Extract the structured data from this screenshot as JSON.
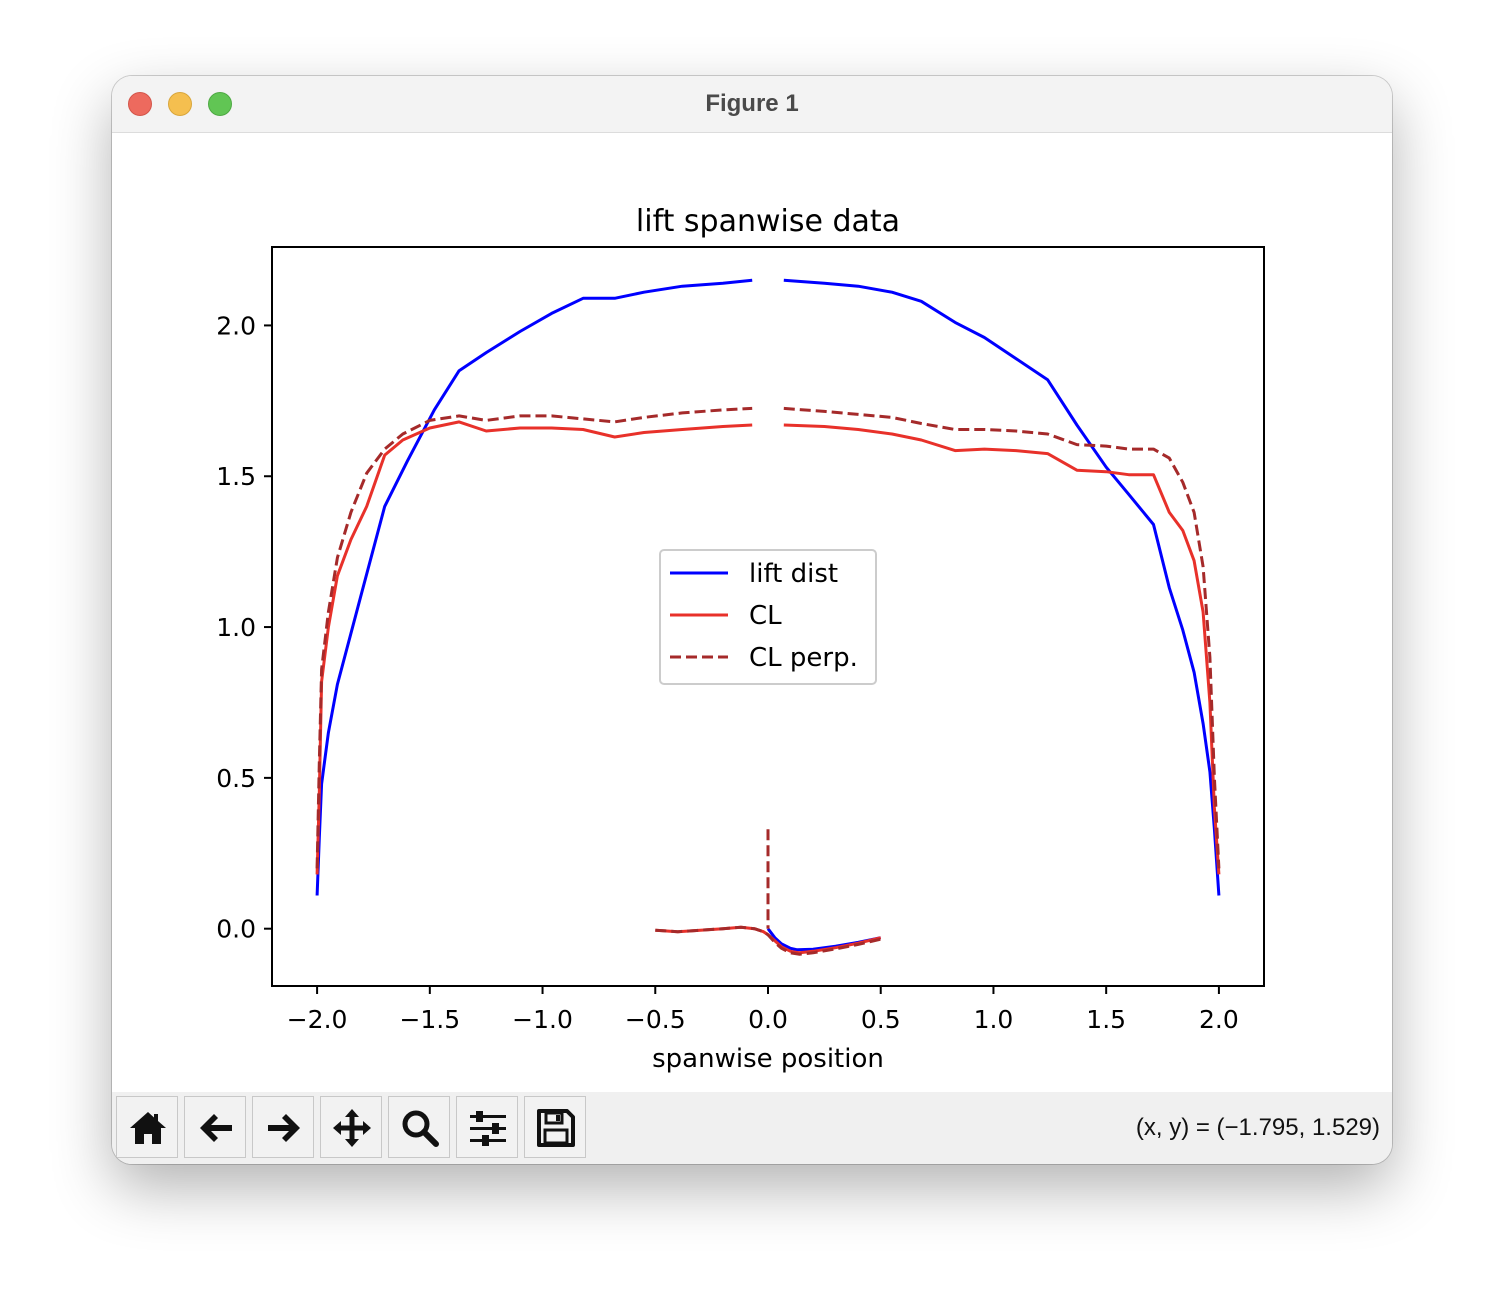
{
  "window": {
    "title": "Figure 1"
  },
  "toolbar": {
    "buttons": [
      {
        "name": "home-button",
        "icon": "home-icon"
      },
      {
        "name": "back-button",
        "icon": "arrow-left-icon"
      },
      {
        "name": "forward-button",
        "icon": "arrow-right-icon"
      },
      {
        "name": "pan-button",
        "icon": "move-icon"
      },
      {
        "name": "zoom-button",
        "icon": "search-icon"
      },
      {
        "name": "configure-subplots-button",
        "icon": "sliders-icon"
      },
      {
        "name": "save-button",
        "icon": "save-icon"
      }
    ],
    "coords": "(x, y) = (−1.795, 1.529)"
  },
  "chart_data": {
    "type": "line",
    "title": "lift spanwise data",
    "xlabel": "spanwise position",
    "ylabel": "",
    "xlim": [
      -2.2,
      2.2
    ],
    "ylim": [
      -0.19,
      2.26
    ],
    "xticks": [
      -2.0,
      -1.5,
      -1.0,
      -0.5,
      0.0,
      0.5,
      1.0,
      1.5,
      2.0
    ],
    "xtick_labels": [
      "−2.0",
      "−1.5",
      "−1.0",
      "−0.5",
      "0.0",
      "0.5",
      "1.0",
      "1.5",
      "2.0"
    ],
    "yticks": [
      0.0,
      0.5,
      1.0,
      1.5,
      2.0
    ],
    "ytick_labels": [
      "0.0",
      "0.5",
      "1.0",
      "1.5",
      "2.0"
    ],
    "grid": false,
    "legend": {
      "placement": "center"
    },
    "series": [
      {
        "name": "lift dist",
        "color": "#0000ff",
        "dash": "solid",
        "segments": [
          [
            [
              -2.0,
              0.11
            ],
            [
              -1.99,
              0.3
            ],
            [
              -1.98,
              0.48
            ],
            [
              -1.95,
              0.65
            ],
            [
              -1.91,
              0.81
            ],
            [
              -1.8,
              1.12
            ],
            [
              -1.7,
              1.4
            ],
            [
              -1.6,
              1.55
            ],
            [
              -1.48,
              1.72
            ],
            [
              -1.37,
              1.85
            ],
            [
              -1.25,
              1.91
            ],
            [
              -1.1,
              1.98
            ],
            [
              -0.96,
              2.04
            ],
            [
              -0.82,
              2.09
            ],
            [
              -0.68,
              2.09
            ],
            [
              -0.55,
              2.11
            ],
            [
              -0.38,
              2.13
            ],
            [
              -0.2,
              2.14
            ],
            [
              -0.07,
              2.15
            ]
          ],
          [
            [
              0.07,
              2.15
            ],
            [
              0.25,
              2.14
            ],
            [
              0.4,
              2.13
            ],
            [
              0.55,
              2.11
            ],
            [
              0.68,
              2.08
            ],
            [
              0.83,
              2.01
            ],
            [
              0.96,
              1.96
            ],
            [
              1.1,
              1.89
            ],
            [
              1.24,
              1.82
            ],
            [
              1.37,
              1.67
            ],
            [
              1.5,
              1.53
            ],
            [
              1.6,
              1.44
            ],
            [
              1.71,
              1.34
            ],
            [
              1.78,
              1.13
            ],
            [
              1.84,
              0.99
            ],
            [
              1.89,
              0.85
            ],
            [
              1.93,
              0.68
            ],
            [
              1.96,
              0.52
            ],
            [
              1.98,
              0.33
            ],
            [
              2.0,
              0.11
            ]
          ],
          [
            [
              0.0,
              0.0
            ],
            [
              0.03,
              -0.03
            ],
            [
              0.06,
              -0.05
            ],
            [
              0.1,
              -0.065
            ],
            [
              0.13,
              -0.07
            ],
            [
              0.2,
              -0.068
            ],
            [
              0.3,
              -0.058
            ],
            [
              0.4,
              -0.045
            ],
            [
              0.5,
              -0.03
            ]
          ]
        ]
      },
      {
        "name": "CL",
        "color": "#e8312a",
        "dash": "solid",
        "segments": [
          [
            [
              -2.0,
              0.18
            ],
            [
              -1.99,
              0.45
            ],
            [
              -1.98,
              0.82
            ],
            [
              -1.95,
              1.0
            ],
            [
              -1.91,
              1.17
            ],
            [
              -1.85,
              1.29
            ],
            [
              -1.78,
              1.4
            ],
            [
              -1.7,
              1.57
            ],
            [
              -1.62,
              1.62
            ],
            [
              -1.5,
              1.66
            ],
            [
              -1.37,
              1.68
            ],
            [
              -1.25,
              1.65
            ],
            [
              -1.1,
              1.66
            ],
            [
              -0.96,
              1.66
            ],
            [
              -0.82,
              1.655
            ],
            [
              -0.68,
              1.63
            ],
            [
              -0.55,
              1.645
            ],
            [
              -0.38,
              1.655
            ],
            [
              -0.2,
              1.665
            ],
            [
              -0.07,
              1.67
            ]
          ],
          [
            [
              0.07,
              1.67
            ],
            [
              0.25,
              1.665
            ],
            [
              0.4,
              1.655
            ],
            [
              0.55,
              1.64
            ],
            [
              0.68,
              1.62
            ],
            [
              0.83,
              1.585
            ],
            [
              0.96,
              1.59
            ],
            [
              1.1,
              1.585
            ],
            [
              1.24,
              1.575
            ],
            [
              1.37,
              1.52
            ],
            [
              1.5,
              1.515
            ],
            [
              1.6,
              1.505
            ],
            [
              1.71,
              1.505
            ],
            [
              1.78,
              1.38
            ],
            [
              1.84,
              1.32
            ],
            [
              1.89,
              1.22
            ],
            [
              1.93,
              1.05
            ],
            [
              1.96,
              0.75
            ],
            [
              1.98,
              0.4
            ],
            [
              2.0,
              0.18
            ]
          ],
          [
            [
              -0.5,
              -0.005
            ],
            [
              -0.4,
              -0.01
            ],
            [
              -0.3,
              -0.005
            ],
            [
              -0.2,
              0.0
            ],
            [
              -0.12,
              0.005
            ],
            [
              -0.06,
              0.0
            ],
            [
              -0.02,
              -0.01
            ],
            [
              0.0,
              -0.02
            ],
            [
              0.03,
              -0.04
            ],
            [
              0.06,
              -0.06
            ],
            [
              0.1,
              -0.075
            ],
            [
              0.14,
              -0.08
            ],
            [
              0.2,
              -0.075
            ],
            [
              0.3,
              -0.063
            ],
            [
              0.4,
              -0.048
            ],
            [
              0.5,
              -0.03
            ]
          ]
        ]
      },
      {
        "name": "CL perp.",
        "color": "#a52a2a",
        "dash": "dashed",
        "segments": [
          [
            [
              -2.0,
              0.2
            ],
            [
              -1.99,
              0.55
            ],
            [
              -1.98,
              0.86
            ],
            [
              -1.95,
              1.05
            ],
            [
              -1.91,
              1.23
            ],
            [
              -1.85,
              1.38
            ],
            [
              -1.78,
              1.51
            ],
            [
              -1.7,
              1.59
            ],
            [
              -1.62,
              1.64
            ],
            [
              -1.5,
              1.685
            ],
            [
              -1.37,
              1.7
            ],
            [
              -1.25,
              1.685
            ],
            [
              -1.1,
              1.7
            ],
            [
              -0.96,
              1.7
            ],
            [
              -0.82,
              1.69
            ],
            [
              -0.68,
              1.68
            ],
            [
              -0.55,
              1.695
            ],
            [
              -0.38,
              1.71
            ],
            [
              -0.2,
              1.72
            ],
            [
              -0.07,
              1.725
            ]
          ],
          [
            [
              0.07,
              1.725
            ],
            [
              0.25,
              1.715
            ],
            [
              0.4,
              1.705
            ],
            [
              0.55,
              1.695
            ],
            [
              0.68,
              1.675
            ],
            [
              0.83,
              1.655
            ],
            [
              0.96,
              1.655
            ],
            [
              1.1,
              1.65
            ],
            [
              1.24,
              1.64
            ],
            [
              1.37,
              1.605
            ],
            [
              1.5,
              1.6
            ],
            [
              1.6,
              1.59
            ],
            [
              1.71,
              1.59
            ],
            [
              1.78,
              1.56
            ],
            [
              1.84,
              1.48
            ],
            [
              1.89,
              1.38
            ],
            [
              1.93,
              1.2
            ],
            [
              1.96,
              0.9
            ],
            [
              1.98,
              0.5
            ],
            [
              2.0,
              0.2
            ]
          ],
          [
            [
              -0.5,
              -0.005
            ],
            [
              -0.4,
              -0.01
            ],
            [
              -0.3,
              -0.005
            ],
            [
              -0.2,
              0.0
            ],
            [
              -0.12,
              0.005
            ],
            [
              -0.06,
              0.0
            ],
            [
              -0.02,
              -0.01
            ],
            [
              0.0,
              -0.02
            ],
            [
              0.03,
              -0.045
            ],
            [
              0.06,
              -0.065
            ],
            [
              0.1,
              -0.08
            ],
            [
              0.14,
              -0.085
            ],
            [
              0.2,
              -0.08
            ],
            [
              0.3,
              -0.067
            ],
            [
              0.4,
              -0.052
            ],
            [
              0.5,
              -0.035
            ]
          ],
          [
            [
              0.0,
              0.33
            ],
            [
              0.0,
              0.0
            ]
          ]
        ]
      }
    ]
  }
}
